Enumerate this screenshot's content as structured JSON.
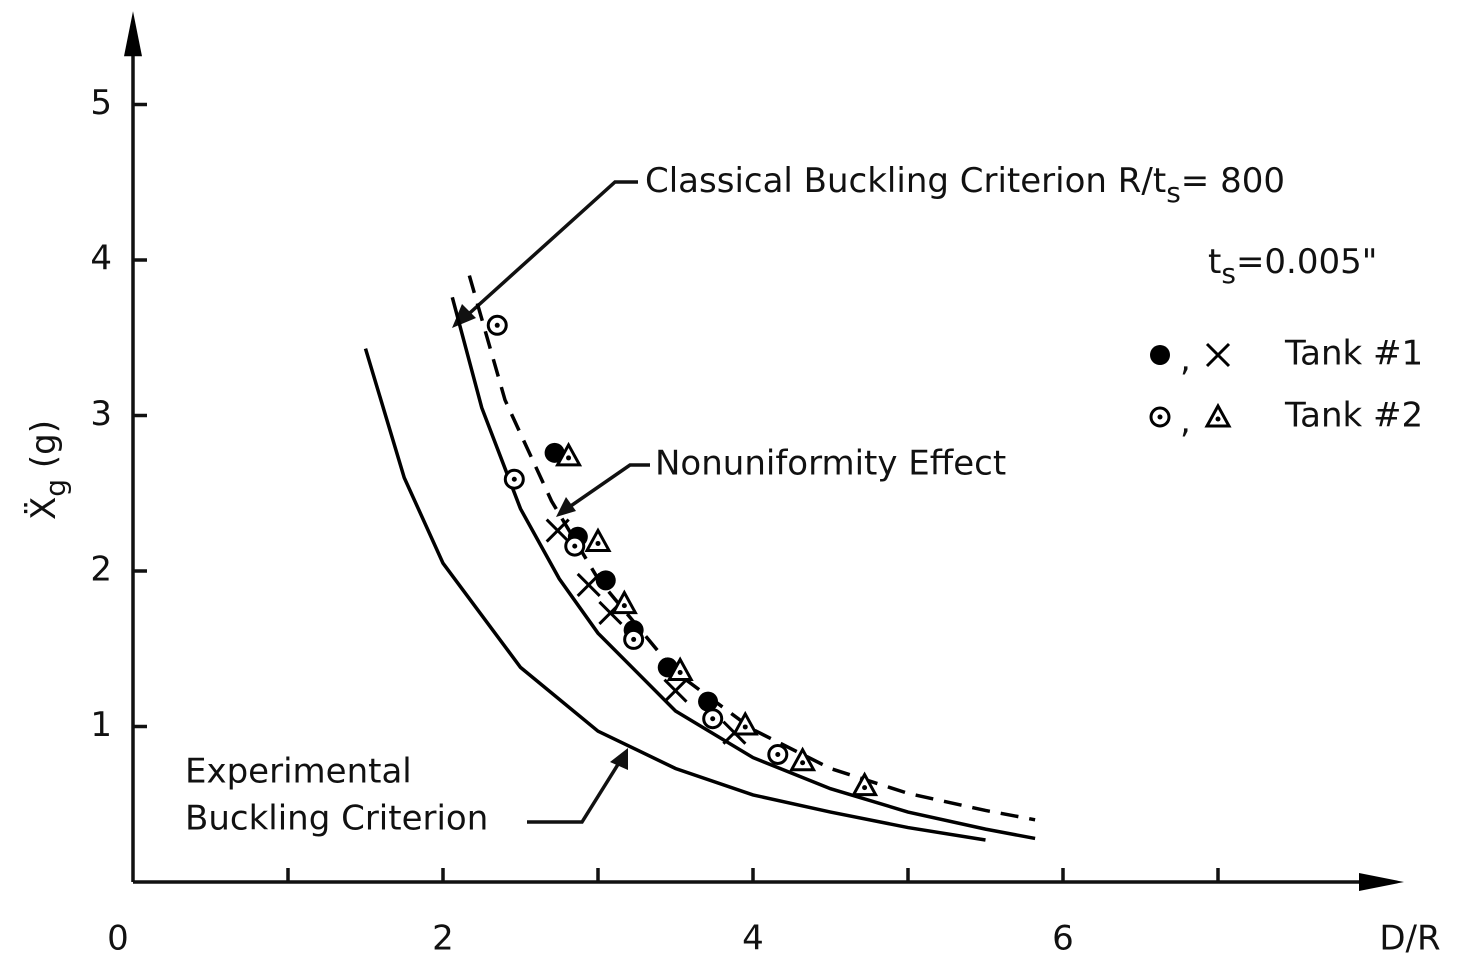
{
  "chart_data": {
    "type": "scatter",
    "xlabel": "D/R",
    "ylabel": {
      "text": "Ẍ",
      "sub": "g",
      "after": " (g)"
    },
    "xlim": [
      0,
      8.2
    ],
    "ylim": [
      0,
      5.6
    ],
    "xticks": [
      0,
      2,
      4,
      6
    ],
    "xminor_ticks": [
      1,
      3,
      5,
      7
    ],
    "yticks": [
      1,
      2,
      3,
      4,
      5
    ],
    "color": "#000000",
    "series": [
      {
        "name": "Tank #1",
        "marker": "filled-circle",
        "x": [
          2.72,
          2.87,
          3.05,
          3.23,
          3.45,
          3.71
        ],
        "values": [
          2.76,
          2.22,
          1.94,
          1.62,
          1.38,
          1.16
        ]
      },
      {
        "name": "Tank #1",
        "marker": "x",
        "x": [
          2.74,
          2.94,
          3.08,
          3.5,
          3.88
        ],
        "values": [
          2.26,
          1.91,
          1.73,
          1.23,
          0.96
        ]
      },
      {
        "name": "Tank #2",
        "marker": "dotted-circle",
        "x": [
          2.35,
          2.46,
          2.85,
          3.23,
          3.74,
          4.16
        ],
        "values": [
          3.58,
          2.59,
          2.16,
          1.56,
          1.05,
          0.82
        ]
      },
      {
        "name": "Tank #2",
        "marker": "dotted-triangle",
        "x": [
          2.81,
          3.0,
          3.17,
          3.53,
          3.95,
          4.32,
          4.72
        ],
        "values": [
          2.74,
          2.19,
          1.79,
          1.36,
          1.01,
          0.78,
          0.62
        ]
      }
    ],
    "legend_separator": ",",
    "curves": [
      {
        "dashed": false,
        "x": [
          1.5,
          1.75,
          2,
          2.5,
          3,
          3.5,
          4,
          4.5,
          5,
          5.5
        ],
        "values": [
          3.43,
          2.6,
          2.05,
          1.38,
          0.97,
          0.73,
          0.56,
          0.45,
          0.35,
          0.27
        ]
      },
      {
        "dashed": false,
        "x": [
          2.06,
          2.25,
          2.5,
          2.75,
          3,
          3.5,
          4,
          4.5,
          5,
          5.5,
          5.82
        ],
        "values": [
          3.76,
          3.05,
          2.4,
          1.95,
          1.6,
          1.1,
          0.8,
          0.6,
          0.45,
          0.34,
          0.28
        ]
      },
      {
        "dashed": true,
        "x": [
          2.17,
          2.4,
          2.7,
          3,
          3.5,
          4,
          4.5,
          5,
          5.5,
          5.82
        ],
        "values": [
          3.9,
          3.1,
          2.45,
          1.95,
          1.35,
          0.98,
          0.73,
          0.57,
          0.46,
          0.4
        ]
      }
    ],
    "annotations": {
      "classical": {
        "text": "Classical Buckling Criterion R/t",
        "sub": "s",
        "after": "= 800"
      },
      "thickness": {
        "text": "t",
        "sub": "s",
        "after": "=0.005\""
      },
      "nonuniformity": "Nonuniformity Effect",
      "experimental": [
        "Experimental",
        "Buckling Criterion"
      ]
    }
  }
}
